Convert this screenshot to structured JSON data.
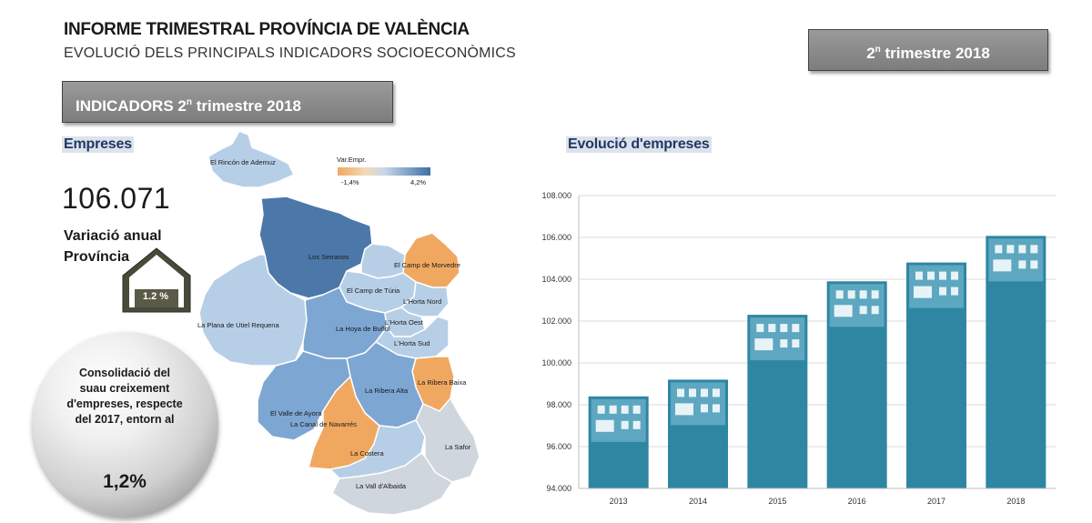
{
  "header": {
    "title": "INFORME TRIMESTRAL  PROVÍNCIA DE VALÈNCIA",
    "subtitle": "EVOLUCIÓ DELS PRINCIPALS INDICADORS SOCIOECONÒMICS",
    "quarter_prefix": "2",
    "quarter_sup": "n",
    "quarter_suffix": " trimestre 2018"
  },
  "indicadors": {
    "prefix": "INDICADORS 2",
    "sup": "n",
    "suffix": " trimestre 2018"
  },
  "empreses": {
    "label": "Empreses",
    "total": "106.071",
    "variation_label_1": "Variació anual",
    "variation_label_2": "Província",
    "variation_value": "1.2 %",
    "bubble_text": "Consolidació del suau creixement d'empreses, respecte del 2017, entorn al",
    "bubble_value": "1,2%"
  },
  "map": {
    "legend_title": "Var.Empr.",
    "legend_min": "-1,4%",
    "legend_max": "4,2%",
    "colors": {
      "orange": "#f0a860",
      "light": "#b7cfe6",
      "mid": "#7ea6d2",
      "dark": "#4b78a8",
      "grey": "#cfd6dd"
    },
    "regions": [
      "El Rincón de Ademuz",
      "Los Serranos",
      "El Camp de Morvedre",
      "El Camp de Túria",
      "L'Horta Nord",
      "La Plana de Utiel Requena",
      "La Hoya de Buñol",
      "L'Horta Oest",
      "L'Horta Sud",
      "La Ribera Baixa",
      "La Ribera Alta",
      "El Valle de Ayora",
      "La Canal de Navarrés",
      "La Costera",
      "La Safor",
      "La Vall d'Albaida"
    ]
  },
  "chart_data": {
    "type": "bar",
    "title": "Evolució d'empreses",
    "categories": [
      "2013",
      "2014",
      "2015",
      "2016",
      "2017",
      "2018"
    ],
    "values": [
      98400,
      99200,
      102300,
      103900,
      104800,
      106071
    ],
    "ylim": [
      94000,
      108000
    ],
    "yticks": [
      "94.000",
      "96.000",
      "98.000",
      "100.000",
      "102.000",
      "104.000",
      "106.000",
      "108.000"
    ],
    "grid": true,
    "bar_color": "#2e86a3"
  }
}
